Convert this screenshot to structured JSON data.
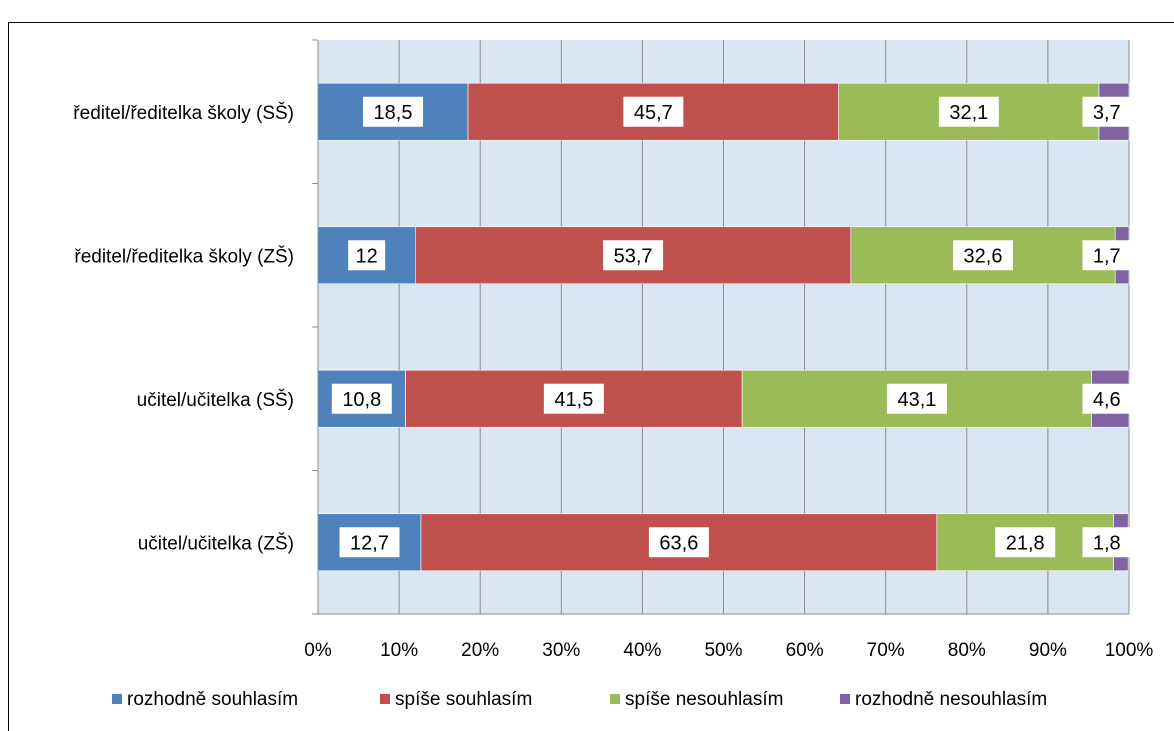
{
  "title": "",
  "chart_data": {
    "type": "bar",
    "orientation": "horizontal",
    "stacked": "percent",
    "title": "",
    "xlabel": "",
    "ylabel": "",
    "xlim": [
      0,
      100
    ],
    "x_ticks": [
      "0%",
      "10%",
      "20%",
      "30%",
      "40%",
      "50%",
      "60%",
      "70%",
      "80%",
      "90%",
      "100%"
    ],
    "grid": true,
    "legend_position": "bottom",
    "categories": [
      "ředitel/ředitelka školy (SŠ)",
      "ředitel/ředitelka školy (ZŠ)",
      "učitel/učitelka (SŠ)",
      "učitel/učitelka (ZŠ)"
    ],
    "series": [
      {
        "name": "rozhodně souhlasím",
        "color": "#4F81BD",
        "values": [
          18.5,
          12,
          10.8,
          12.7
        ],
        "labels": [
          "18,5",
          "12",
          "10,8",
          "12,7"
        ]
      },
      {
        "name": "spíše souhlasím",
        "color": "#C0504D",
        "values": [
          45.7,
          53.7,
          41.5,
          63.6
        ],
        "labels": [
          "45,7",
          "53,7",
          "41,5",
          "63,6"
        ]
      },
      {
        "name": "spíše nesouhlasím",
        "color": "#9BBB59",
        "values": [
          32.1,
          32.6,
          43.1,
          21.8
        ],
        "labels": [
          "32,1",
          "32,6",
          "43,1",
          "21,8"
        ]
      },
      {
        "name": "rozhodně nesouhlasím",
        "color": "#8064A2",
        "values": [
          3.7,
          1.7,
          4.6,
          1.8
        ],
        "labels": [
          "3,7",
          "1,7",
          "4,6",
          "1,8"
        ]
      }
    ],
    "plot_background": "#DCE6F2"
  }
}
